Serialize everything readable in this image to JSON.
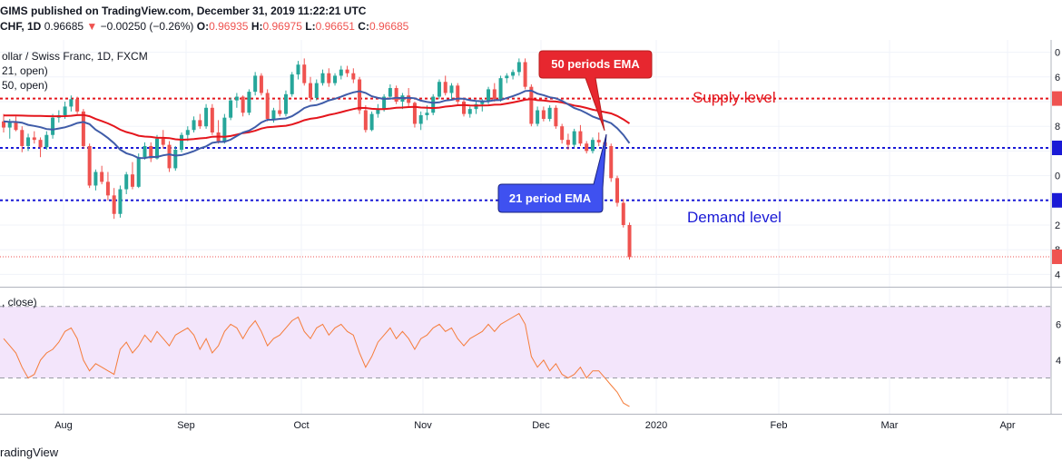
{
  "header": {
    "publisher_line": "GIMS published on TradingView.com, December 31, 2019 11:22:21 UTC",
    "symbol": "CHF, 1D",
    "last": "0.96685",
    "arrow": "▼",
    "change": "−0.00250 (−0.26%)",
    "o_label": "O:",
    "o_value": "0.96935",
    "h_label": "H:",
    "h_value": "0.96975",
    "l_label": "L:",
    "l_value": "0.96651",
    "c_label": "C:",
    "c_value": "0.96685"
  },
  "legend": {
    "instrument": "ollar / Swiss Franc, 1D, FXCM",
    "ema21": "21, open)",
    "ema50": "50, open)",
    "rsi": ", close)"
  },
  "annotations": {
    "ema50_callout": "50 periods EMA",
    "ema21_callout": "21 period EMA",
    "supply": "Supply level",
    "demand": "Demand level"
  },
  "footer": {
    "brand": "radingView"
  },
  "colors": {
    "up": "#26a69a",
    "down": "#ef5350",
    "ema21": "#3f5ca8",
    "ema50": "#e4151c",
    "supply_line": "#e4151c",
    "demand_line": "#1a1ad6",
    "rsi_line": "#f57c3a",
    "rsi_band": "#f3e5fb",
    "callout_red": "#e7272f",
    "callout_blue": "#3f51f0"
  },
  "chart_data": [
    {
      "type": "candlestick",
      "x_axis_ticks": [
        "Aug",
        "Sep",
        "Oct",
        "Nov",
        "Dec",
        "2020",
        "Feb",
        "Mar",
        "Apr"
      ],
      "ylim": [
        0.962,
        1.002
      ],
      "supply_level": 0.9925,
      "demand_levels": [
        0.9845,
        0.976
      ],
      "last_close": 0.96685,
      "candles": [
        [
          0.9888,
          0.99,
          0.987,
          0.9878
        ],
        [
          0.9878,
          0.9892,
          0.986,
          0.9886
        ],
        [
          0.9886,
          0.9896,
          0.9872,
          0.9874
        ],
        [
          0.9874,
          0.988,
          0.9838,
          0.9848
        ],
        [
          0.9848,
          0.9868,
          0.984,
          0.9862
        ],
        [
          0.9862,
          0.9872,
          0.9852,
          0.9858
        ],
        [
          0.9858,
          0.9862,
          0.983,
          0.9846
        ],
        [
          0.9846,
          0.9872,
          0.9842,
          0.9866
        ],
        [
          0.9866,
          0.99,
          0.986,
          0.9894
        ],
        [
          0.9894,
          0.9906,
          0.9886,
          0.9898
        ],
        [
          0.9898,
          0.992,
          0.9892,
          0.9912
        ],
        [
          0.9912,
          0.993,
          0.9904,
          0.9924
        ],
        [
          0.9924,
          0.9928,
          0.99,
          0.9904
        ],
        [
          0.9904,
          0.9908,
          0.9844,
          0.9848
        ],
        [
          0.9848,
          0.9852,
          0.978,
          0.9784
        ],
        [
          0.9784,
          0.981,
          0.9776,
          0.9806
        ],
        [
          0.9806,
          0.9816,
          0.9786,
          0.979
        ],
        [
          0.979,
          0.9806,
          0.976,
          0.9768
        ],
        [
          0.9768,
          0.978,
          0.973,
          0.9738
        ],
        [
          0.9738,
          0.9784,
          0.9732,
          0.9778
        ],
        [
          0.9778,
          0.9806,
          0.977,
          0.9802
        ],
        [
          0.9802,
          0.9822,
          0.9778,
          0.9782
        ],
        [
          0.9782,
          0.9836,
          0.978,
          0.983
        ],
        [
          0.983,
          0.9854,
          0.9826,
          0.9848
        ],
        [
          0.9848,
          0.9854,
          0.9822,
          0.9828
        ],
        [
          0.9828,
          0.9866,
          0.9826,
          0.986
        ],
        [
          0.986,
          0.9874,
          0.9844,
          0.985
        ],
        [
          0.985,
          0.9856,
          0.9806,
          0.9812
        ],
        [
          0.9812,
          0.9848,
          0.9808,
          0.9842
        ],
        [
          0.9842,
          0.987,
          0.9838,
          0.9866
        ],
        [
          0.9866,
          0.988,
          0.9856,
          0.9874
        ],
        [
          0.9874,
          0.9896,
          0.987,
          0.989
        ],
        [
          0.989,
          0.99,
          0.9876,
          0.988
        ],
        [
          0.988,
          0.9916,
          0.9876,
          0.991
        ],
        [
          0.991,
          0.9916,
          0.9866,
          0.987
        ],
        [
          0.987,
          0.989,
          0.9852,
          0.9856
        ],
        [
          0.9856,
          0.99,
          0.9852,
          0.9894
        ],
        [
          0.9894,
          0.9926,
          0.989,
          0.9922
        ],
        [
          0.9922,
          0.9934,
          0.991,
          0.9928
        ],
        [
          0.9928,
          0.993,
          0.9896,
          0.9902
        ],
        [
          0.9902,
          0.994,
          0.9898,
          0.9936
        ],
        [
          0.9936,
          0.9968,
          0.993,
          0.9962
        ],
        [
          0.9962,
          0.9966,
          0.993,
          0.9934
        ],
        [
          0.9934,
          0.994,
          0.9888,
          0.9892
        ],
        [
          0.9892,
          0.991,
          0.9886,
          0.9906
        ],
        [
          0.9906,
          0.9924,
          0.9896,
          0.99
        ],
        [
          0.99,
          0.9938,
          0.9896,
          0.9932
        ],
        [
          0.9932,
          0.9968,
          0.9928,
          0.9964
        ],
        [
          0.9964,
          0.9986,
          0.9956,
          0.998
        ],
        [
          0.998,
          0.999,
          0.9946,
          0.995
        ],
        [
          0.995,
          0.996,
          0.992,
          0.9926
        ],
        [
          0.9926,
          0.9956,
          0.9922,
          0.995
        ],
        [
          0.995,
          0.9972,
          0.9946,
          0.9966
        ],
        [
          0.9966,
          0.9974,
          0.9944,
          0.995
        ],
        [
          0.995,
          0.9966,
          0.9946,
          0.9962
        ],
        [
          0.9962,
          0.9978,
          0.9956,
          0.9972
        ],
        [
          0.9972,
          0.9978,
          0.996,
          0.9966
        ],
        [
          0.9966,
          0.9974,
          0.995,
          0.9956
        ],
        [
          0.9956,
          0.996,
          0.99,
          0.9906
        ],
        [
          0.9906,
          0.9914,
          0.987,
          0.9874
        ],
        [
          0.9874,
          0.9904,
          0.9872,
          0.99
        ],
        [
          0.99,
          0.9916,
          0.9894,
          0.9908
        ],
        [
          0.9908,
          0.9932,
          0.9904,
          0.9928
        ],
        [
          0.9928,
          0.9948,
          0.9924,
          0.9942
        ],
        [
          0.9942,
          0.9946,
          0.9916,
          0.992
        ],
        [
          0.992,
          0.9934,
          0.9908,
          0.993
        ],
        [
          0.993,
          0.9942,
          0.9912,
          0.9918
        ],
        [
          0.9918,
          0.992,
          0.9878,
          0.9884
        ],
        [
          0.9884,
          0.9904,
          0.9874,
          0.9898
        ],
        [
          0.9898,
          0.9914,
          0.989,
          0.9902
        ],
        [
          0.9902,
          0.9932,
          0.9898,
          0.9928
        ],
        [
          0.9928,
          0.9956,
          0.9924,
          0.9952
        ],
        [
          0.9952,
          0.9962,
          0.993,
          0.9934
        ],
        [
          0.9934,
          0.995,
          0.9922,
          0.9946
        ],
        [
          0.9946,
          0.995,
          0.9916,
          0.992
        ],
        [
          0.992,
          0.9924,
          0.9896,
          0.99
        ],
        [
          0.99,
          0.9912,
          0.9894,
          0.9908
        ],
        [
          0.9908,
          0.992,
          0.99,
          0.9916
        ],
        [
          0.9916,
          0.9924,
          0.9904,
          0.992
        ],
        [
          0.992,
          0.9944,
          0.9916,
          0.994
        ],
        [
          0.994,
          0.995,
          0.992,
          0.9924
        ],
        [
          0.9924,
          0.9962,
          0.992,
          0.9958
        ],
        [
          0.9958,
          0.9966,
          0.995,
          0.9962
        ],
        [
          0.9962,
          0.9972,
          0.9956,
          0.9968
        ],
        [
          0.9968,
          0.999,
          0.9962,
          0.9984
        ],
        [
          0.9984,
          0.999,
          0.994,
          0.9944
        ],
        [
          0.9944,
          0.9948,
          0.988,
          0.9884
        ],
        [
          0.9884,
          0.9912,
          0.988,
          0.9906
        ],
        [
          0.9906,
          0.9912,
          0.9888,
          0.9892
        ],
        [
          0.9892,
          0.9914,
          0.9888,
          0.991
        ],
        [
          0.991,
          0.9914,
          0.9876,
          0.988
        ],
        [
          0.988,
          0.9884,
          0.9852,
          0.9858
        ],
        [
          0.9858,
          0.9868,
          0.9842,
          0.985
        ],
        [
          0.985,
          0.9876,
          0.9846,
          0.9872
        ],
        [
          0.9872,
          0.9882,
          0.9848,
          0.9852
        ],
        [
          0.9852,
          0.9856,
          0.9836,
          0.984
        ],
        [
          0.984,
          0.9862,
          0.9836,
          0.9858
        ],
        [
          0.9858,
          0.987,
          0.9848,
          0.9854
        ],
        [
          0.9854,
          0.9858,
          0.9842,
          0.9848
        ],
        [
          0.9848,
          0.9852,
          0.979,
          0.9796
        ],
        [
          0.9796,
          0.98,
          0.975,
          0.9756
        ],
        [
          0.9756,
          0.9762,
          0.9716,
          0.972
        ],
        [
          0.972,
          0.9724,
          0.9664,
          0.9668
        ]
      ]
    },
    {
      "type": "line",
      "name_hint": "RSI",
      "ylim": [
        10,
        80
      ],
      "band": [
        30,
        70
      ],
      "ticks": [
        40,
        60
      ],
      "values": [
        52,
        48,
        44,
        36,
        30,
        32,
        40,
        44,
        46,
        50,
        56,
        58,
        52,
        40,
        34,
        38,
        36,
        34,
        32,
        46,
        50,
        44,
        48,
        54,
        50,
        56,
        52,
        48,
        54,
        56,
        58,
        54,
        46,
        52,
        44,
        48,
        56,
        60,
        58,
        52,
        58,
        62,
        56,
        48,
        52,
        54,
        58,
        62,
        64,
        56,
        52,
        58,
        60,
        54,
        58,
        60,
        56,
        54,
        44,
        36,
        42,
        50,
        54,
        58,
        52,
        56,
        52,
        46,
        52,
        54,
        58,
        60,
        56,
        58,
        52,
        48,
        52,
        54,
        56,
        60,
        56,
        60,
        62,
        64,
        66,
        60,
        42,
        36,
        40,
        34,
        38,
        32,
        30,
        32,
        36,
        30,
        34,
        34,
        30,
        26,
        22,
        16,
        14
      ]
    }
  ]
}
